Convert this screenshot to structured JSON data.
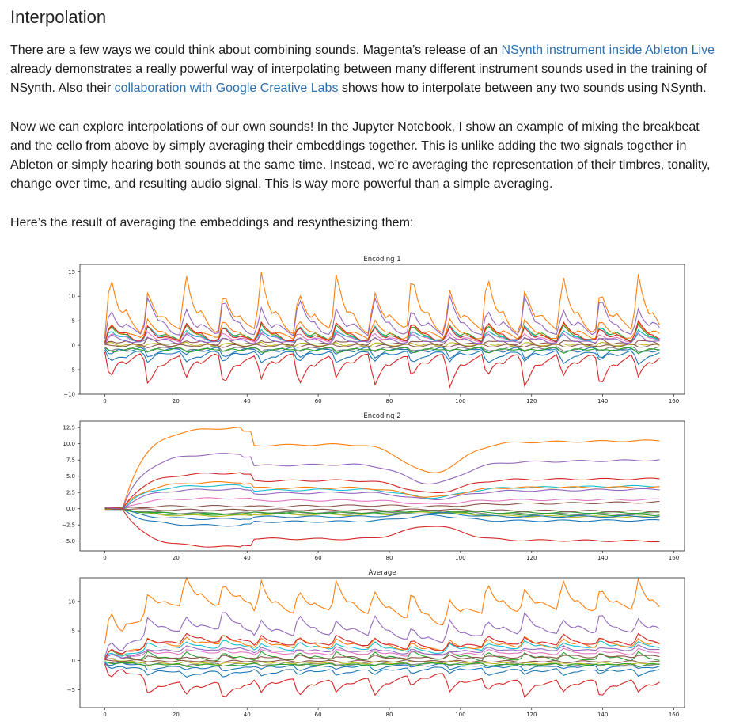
{
  "heading": "Interpolation",
  "para1": {
    "t1": "There are a few ways we could think about combining sounds. Magenta’s release of an ",
    "link1": "NSynth instrument inside Ableton Live",
    "t2": " already demonstrates a really powerful way of interpolating between many different instrument sounds used in the training of NSynth. Also their ",
    "link2": "collaboration with Google Creative Labs",
    "t3": " shows how to interpolate between any two sounds using NSynth."
  },
  "para2": "Now we can explore interpolations of our own sounds! In the Jupyter Notebook, I show an example of mixing the breakbeat and the cello from above by simply averaging their embeddings together. This is unlike adding the two signals together in Ableton or simply hearing both sounds at the same time. Instead, we’re averaging the representation of their timbres, tonality, change over time, and resulting audio signal. This is way more powerful than a simple averaging.",
  "para3": "Here’s the result of averaging the embeddings and resynthesizing them:",
  "colors": {
    "link": "#2c6fb0",
    "series": [
      "#1f77b4",
      "#ff7f0e",
      "#2ca02c",
      "#d62728",
      "#9467bd",
      "#8c564b",
      "#e377c2",
      "#7f7f7f",
      "#bcbd22",
      "#17becf",
      "#1f77b4",
      "#ff7f0e",
      "#2ca02c",
      "#d62728",
      "#9467bd",
      "#8c564b"
    ]
  },
  "chart_data": [
    {
      "type": "line",
      "title": "Encoding 1",
      "xlim": [
        -7,
        163
      ],
      "ylim": [
        -10,
        16.5
      ],
      "xticks": [
        0,
        20,
        40,
        60,
        80,
        100,
        120,
        140,
        160
      ],
      "yticks": [
        15,
        10,
        5,
        0,
        -5,
        -10
      ],
      "ytick_labels": [
        "15",
        "10",
        "5",
        "0",
        "−5",
        "−10"
      ],
      "x": [
        0,
        156
      ],
      "grid": false,
      "series_count": 16,
      "description_of_series": "16 embedding channels oscillating rhythmically; orange peaks ~15, purple ~10, red troughs ~-8"
    },
    {
      "type": "line",
      "title": "Encoding 2",
      "xlim": [
        -7,
        163
      ],
      "ylim": [
        -6.5,
        13.5
      ],
      "xticks": [
        0,
        20,
        40,
        60,
        80,
        100,
        120,
        140,
        160
      ],
      "yticks": [
        12.5,
        10.0,
        7.5,
        5.0,
        2.5,
        0.0,
        -2.5,
        -5.0
      ],
      "ytick_labels": [
        "12.5",
        "10.0",
        "7.5",
        "5.0",
        "2.5",
        "0.0",
        "−2.5",
        "−5.0"
      ],
      "x": [
        0,
        156
      ],
      "grid": false,
      "series_count": 16,
      "description_of_series": "16 smooth embedding channels; orange rises to ~12.5, dips ~5.5 near x=93, returns ~12; red falls to ~-6"
    },
    {
      "type": "line",
      "title": "Average",
      "xlim": [
        -7,
        163
      ],
      "ylim": [
        -8,
        14
      ],
      "xticks": [
        0,
        20,
        40,
        60,
        80,
        100,
        120,
        140,
        160
      ],
      "yticks": [
        10,
        5,
        0,
        -5
      ],
      "ytick_labels": [
        "10",
        "5",
        "0",
        "−5"
      ],
      "x": [
        0,
        156
      ],
      "grid": false,
      "series_count": 16,
      "description_of_series": "average of the two encodings; orange peaks ~13, red troughs ~-7"
    }
  ]
}
